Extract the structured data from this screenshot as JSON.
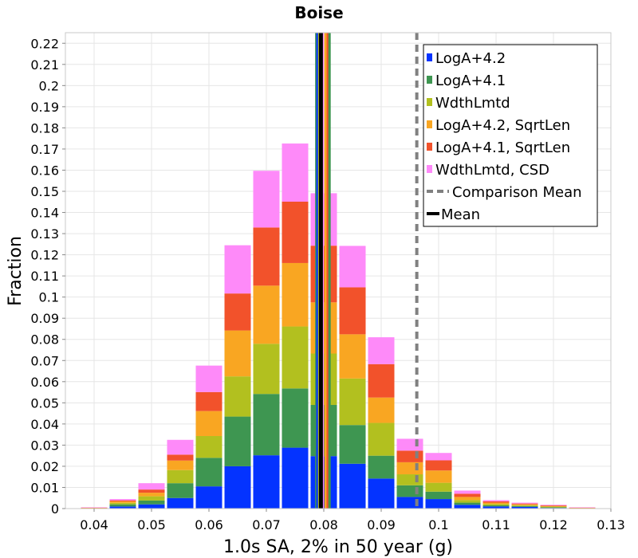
{
  "chart_data": {
    "type": "bar",
    "stacked": true,
    "title": "Boise",
    "xlabel": "1.0s SA, 2% in 50 year (g)",
    "ylabel": "Fraction",
    "xlim": [
      0.035,
      0.13
    ],
    "ylim": [
      0,
      0.225
    ],
    "xticks": [
      0.04,
      0.05,
      0.06,
      0.07,
      0.08,
      0.09,
      0.1,
      0.11,
      0.12,
      0.13
    ],
    "xtick_labels": [
      "0.04",
      "0.05",
      "0.06",
      "0.07",
      "0.08",
      "0.09",
      "0.1",
      "0.11",
      "0.12",
      "0.13"
    ],
    "yticks": [
      0,
      0.01,
      0.02,
      0.03,
      0.04,
      0.05,
      0.06,
      0.07,
      0.08,
      0.09,
      0.1,
      0.11,
      0.12,
      0.13,
      0.14,
      0.15,
      0.16,
      0.17,
      0.18,
      0.19,
      0.2,
      0.21,
      0.22
    ],
    "ytick_labels": [
      "0",
      "0.01",
      "0.02",
      "0.03",
      "0.04",
      "0.05",
      "0.06",
      "0.07",
      "0.08",
      "0.09",
      "0.1",
      "0.11",
      "0.12",
      "0.13",
      "0.14",
      "0.15",
      "0.16",
      "0.17",
      "0.18",
      "0.19",
      "0.2",
      "0.21",
      "0.22"
    ],
    "grid": true,
    "legend_position": "top-right",
    "bin_width": 0.005,
    "bin_centers": [
      0.04,
      0.045,
      0.05,
      0.055,
      0.06,
      0.065,
      0.07,
      0.075,
      0.08,
      0.085,
      0.09,
      0.095,
      0.1,
      0.105,
      0.11,
      0.115,
      0.12,
      0.125,
      0.13
    ],
    "series": [
      {
        "name": "LogA+4.2",
        "color": "#0433ff",
        "values": [
          0.0001,
          0.001,
          0.002,
          0.005,
          0.0105,
          0.02,
          0.0252,
          0.0288,
          0.0248,
          0.0212,
          0.0142,
          0.0055,
          0.0045,
          0.0018,
          0.001,
          0.0008,
          0.0003,
          0.0001,
          0
        ]
      },
      {
        "name": "LogA+4.1",
        "color": "#3e9651",
        "values": [
          0.0001,
          0.001,
          0.0018,
          0.007,
          0.0135,
          0.0235,
          0.029,
          0.028,
          0.0242,
          0.0183,
          0.0108,
          0.0055,
          0.0035,
          0.001,
          0.0005,
          0.0004,
          0.0003,
          0.0001,
          0
        ]
      },
      {
        "name": "WdthLmtd",
        "color": "#b2c01f",
        "values": [
          0.0001,
          0.0007,
          0.002,
          0.0062,
          0.0103,
          0.019,
          0.0237,
          0.0293,
          0.0243,
          0.022,
          0.0155,
          0.0052,
          0.0042,
          0.0012,
          0.0007,
          0.0004,
          0.0003,
          0.0001,
          0
        ]
      },
      {
        "name": "LogA+4.2, SqrtLen",
        "color": "#f9a622",
        "values": [
          0.0001,
          0.0007,
          0.0017,
          0.0045,
          0.0118,
          0.0217,
          0.0275,
          0.03,
          0.0242,
          0.0209,
          0.012,
          0.0057,
          0.0058,
          0.0015,
          0.0006,
          0.0004,
          0.0003,
          0.0001,
          0
        ]
      },
      {
        "name": "LogA+4.1, SqrtLen",
        "color": "#f2522b",
        "values": [
          0.0001,
          0.0005,
          0.0015,
          0.0028,
          0.009,
          0.0175,
          0.0275,
          0.029,
          0.0268,
          0.0222,
          0.0158,
          0.0055,
          0.0048,
          0.0015,
          0.0006,
          0.0004,
          0.0003,
          0.0001,
          0
        ]
      },
      {
        "name": "WdthLmtd, CSD",
        "color": "#fe8af9",
        "values": [
          0.0001,
          0.0006,
          0.003,
          0.007,
          0.0125,
          0.0228,
          0.0268,
          0.0275,
          0.0248,
          0.0196,
          0.0127,
          0.0056,
          0.0035,
          0.0015,
          0.0006,
          0.0004,
          0.0003,
          0.0001,
          0
        ]
      }
    ],
    "vertical_lines": [
      {
        "name": "Comparison Mean",
        "x": 0.0962,
        "color": "#808080",
        "style": "dashed"
      },
      {
        "name": "Mean",
        "x": 0.0795,
        "color": "#000000",
        "style": "solid"
      }
    ],
    "branch_mean_lines": [
      {
        "x": 0.0787,
        "color": "#3e9651"
      },
      {
        "x": 0.0789,
        "color": "#0433ff"
      },
      {
        "x": 0.0792,
        "color": "#b2c01f"
      },
      {
        "x": 0.0798,
        "color": "#fe8af9"
      },
      {
        "x": 0.0803,
        "color": "#f9a622"
      },
      {
        "x": 0.0807,
        "color": "#f2522b"
      },
      {
        "x": 0.081,
        "color": "#3e9651"
      }
    ]
  }
}
